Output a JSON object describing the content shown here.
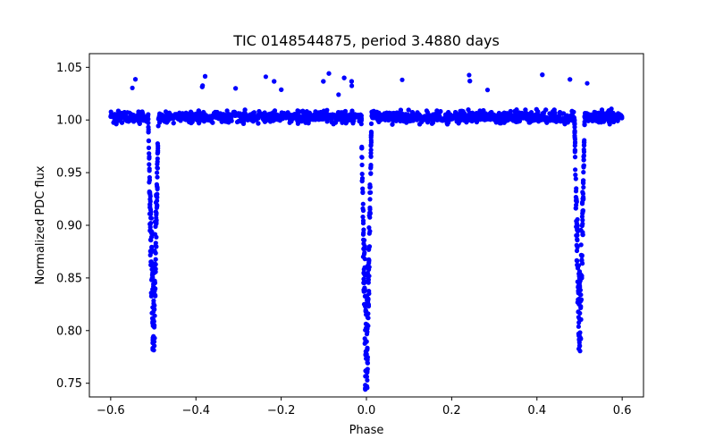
{
  "chart_data": {
    "type": "scatter",
    "title": "TIC 0148544875, period 3.4880 days",
    "xlabel": "Phase",
    "ylabel": "Normalized PDC flux",
    "xlim": [
      -0.65,
      0.65
    ],
    "ylim": [
      0.737,
      1.063
    ],
    "grid": false,
    "x_ticks": [
      -0.6,
      -0.4,
      -0.2,
      0.0,
      0.2,
      0.4,
      0.6
    ],
    "x_tick_labels": [
      "−0.6",
      "−0.4",
      "−0.2",
      "0.0",
      "0.2",
      "0.4",
      "0.6"
    ],
    "y_ticks": [
      0.75,
      0.8,
      0.85,
      0.9,
      0.95,
      1.0,
      1.05
    ],
    "y_tick_labels": [
      "0.75",
      "0.80",
      "0.85",
      "0.90",
      "0.95",
      "1.00",
      "1.05"
    ],
    "series": [
      {
        "color": "#0000ff",
        "marker": "circle",
        "phase_range": [
          -0.6,
          0.6
        ],
        "baseline_flux": 1.003,
        "baseline_scatter": 0.008,
        "eclipses": [
          {
            "phase": -0.5,
            "min_flux": 0.78
          },
          {
            "phase": 0.0,
            "min_flux": 0.743
          },
          {
            "phase": 0.5,
            "min_flux": 0.78
          }
        ]
      }
    ]
  }
}
